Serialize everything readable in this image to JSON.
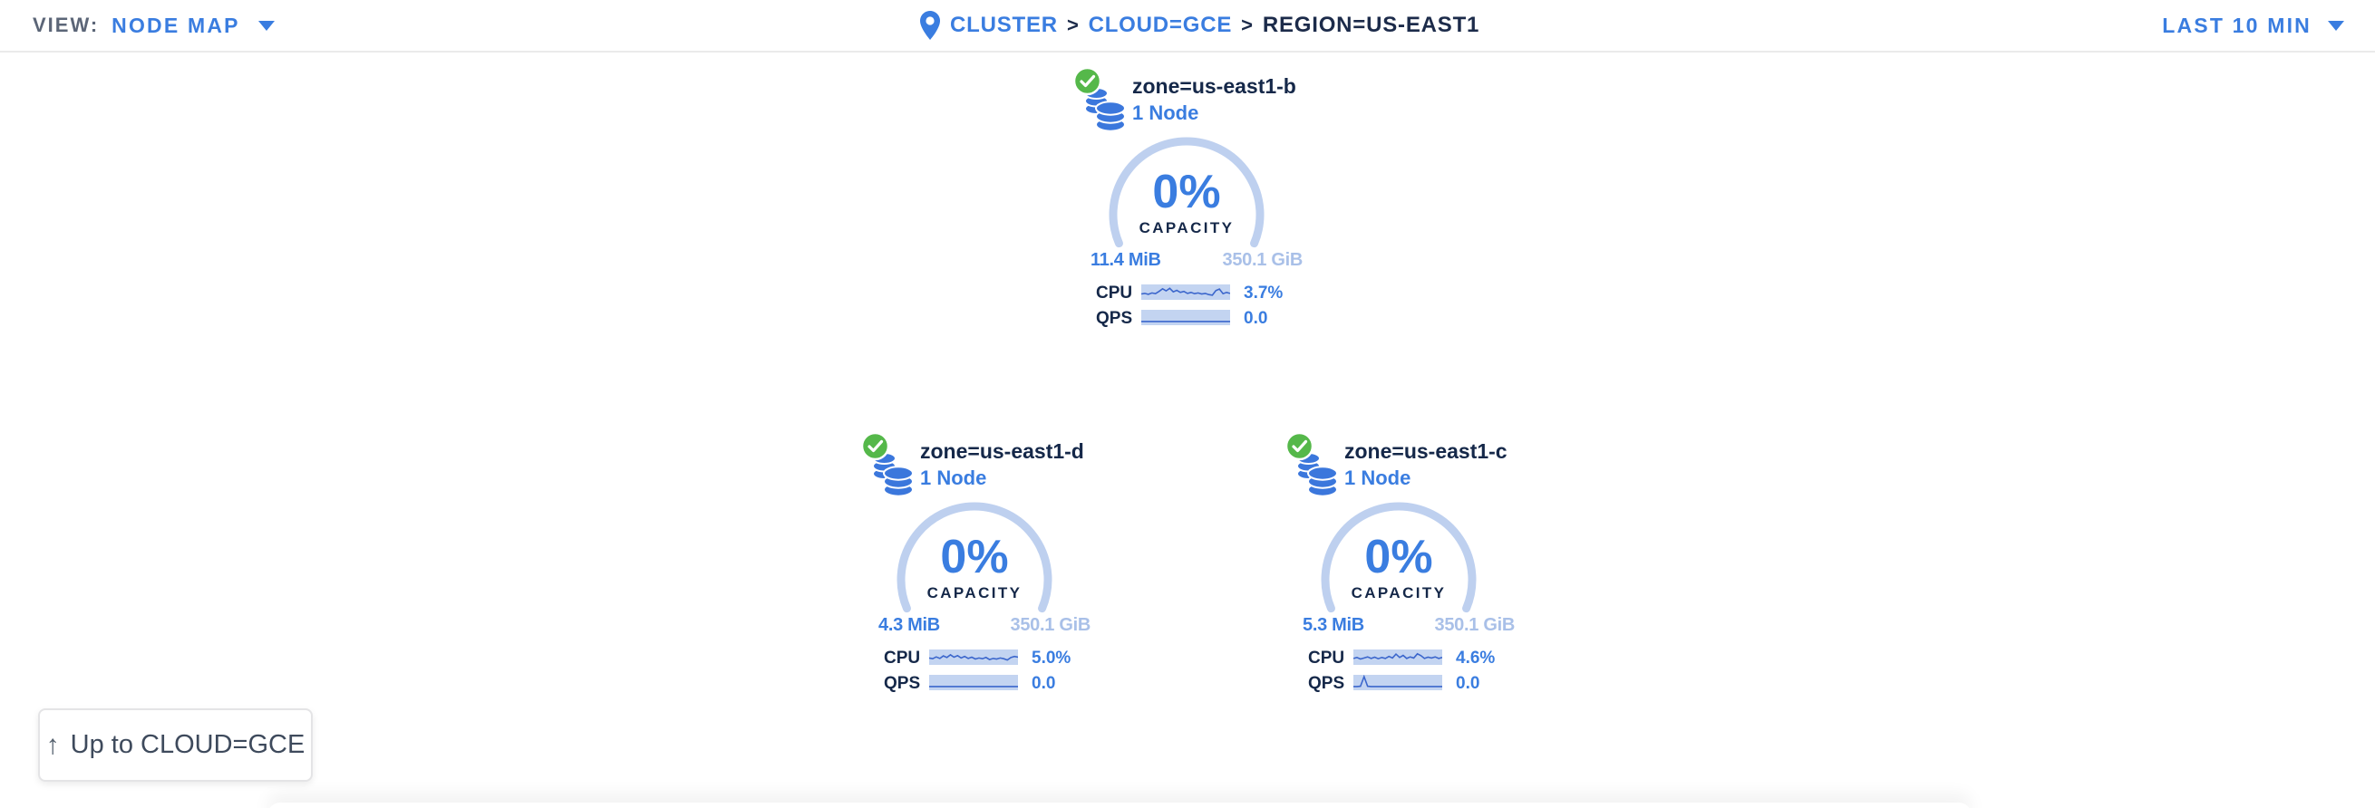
{
  "topbar": {
    "view_label": "VIEW:",
    "view_value": "NODE MAP",
    "breadcrumb": {
      "separator": ">",
      "items": [
        {
          "label": "CLUSTER"
        },
        {
          "label": "CLOUD=GCE"
        },
        {
          "label": "REGION=US-EAST1"
        }
      ]
    },
    "time_range": "LAST 10 MIN"
  },
  "zones": [
    {
      "name": "zone=us-east1-b",
      "node_count": "1 Node",
      "status": "healthy",
      "capacity_pct": "0%",
      "capacity_label": "CAPACITY",
      "capacity_used": "11.4 MiB",
      "capacity_total": "350.1 GiB",
      "cpu_label": "CPU",
      "cpu_value": "3.7%",
      "qps_label": "QPS",
      "qps_value": "0.0",
      "cpu_spark": [
        62,
        58,
        64,
        55,
        60,
        45,
        28,
        42,
        25,
        48,
        38,
        52,
        45,
        58,
        52,
        60,
        55,
        62,
        58,
        66,
        70,
        40,
        30,
        60,
        52,
        58
      ],
      "qps_spark": [
        76,
        76,
        76,
        76,
        76,
        76,
        76,
        76,
        76,
        76,
        76,
        76,
        76,
        76,
        76,
        76,
        76,
        76,
        76,
        76,
        76,
        76,
        76,
        76,
        76,
        76
      ]
    },
    {
      "name": "zone=us-east1-d",
      "node_count": "1 Node",
      "status": "healthy",
      "capacity_pct": "0%",
      "capacity_label": "CAPACITY",
      "capacity_used": "4.3 MiB",
      "capacity_total": "350.1 GiB",
      "cpu_label": "CPU",
      "cpu_value": "5.0%",
      "qps_label": "QPS",
      "qps_value": "0.0",
      "cpu_spark": [
        55,
        60,
        48,
        58,
        42,
        52,
        35,
        50,
        40,
        55,
        45,
        58,
        50,
        62,
        55,
        60,
        52,
        65,
        58,
        62,
        55,
        60,
        68,
        52,
        45,
        50
      ],
      "qps_spark": [
        76,
        76,
        76,
        76,
        76,
        76,
        76,
        76,
        76,
        76,
        76,
        76,
        76,
        76,
        76,
        76,
        76,
        76,
        76,
        76,
        76,
        76,
        76,
        76,
        76,
        76
      ]
    },
    {
      "name": "zone=us-east1-c",
      "node_count": "1 Node",
      "status": "healthy",
      "capacity_pct": "0%",
      "capacity_label": "CAPACITY",
      "capacity_used": "5.3 MiB",
      "capacity_total": "350.1 GiB",
      "cpu_label": "CPU",
      "cpu_value": "4.6%",
      "qps_label": "QPS",
      "qps_value": "0.0",
      "cpu_spark": [
        58,
        52,
        62,
        55,
        48,
        58,
        50,
        60,
        52,
        58,
        45,
        55,
        30,
        52,
        38,
        58,
        48,
        55,
        28,
        40,
        58,
        50,
        55,
        48,
        58,
        52
      ],
      "qps_spark": [
        76,
        76,
        74,
        12,
        74,
        76,
        76,
        76,
        76,
        76,
        76,
        76,
        76,
        76,
        76,
        76,
        76,
        76,
        76,
        76,
        76,
        76,
        76,
        76,
        76,
        76
      ]
    }
  ],
  "up_button": {
    "label": "Up to CLOUD=GCE"
  },
  "colors": {
    "accent_blue": "#3a7de0",
    "navy_text": "#152849",
    "ring_light_blue": "#bed0ef",
    "pale_blue_text": "#a9c0e8",
    "spark_bg": "#c3d4f1",
    "spark_line": "#3b66cc",
    "healthy_green": "#55b84a",
    "muted_gray": "#5b6577"
  }
}
